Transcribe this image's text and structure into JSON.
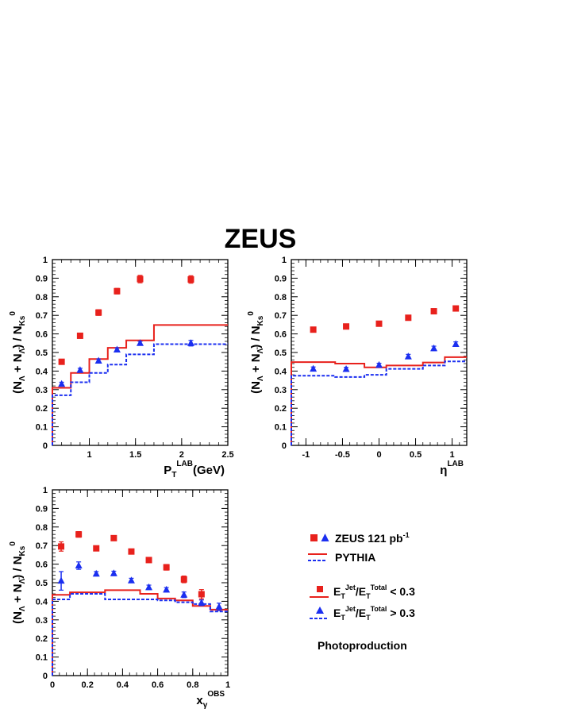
{
  "figure": {
    "title": "ZEUS",
    "y_axis_label": {
      "prefix": "(N",
      "sub1": "Λ",
      "mid": " + N",
      "sub2": "Λ̄",
      "suffix": ") / N",
      "sub3": "Ks",
      "sup3": "0"
    }
  },
  "legend": {
    "data_label": "ZEUS 121 pb",
    "data_label_sup": "-1",
    "mc_label": "PYTHIA",
    "low_label": "E",
    "low_sub": "T",
    "low_sup": "Jet",
    "low_mid": "/E",
    "low_sub2": "T",
    "low_sup2": "Total",
    "low_tail": " < 0.3",
    "high_tail": " > 0.3",
    "process": "Photoproduction"
  },
  "colors": {
    "low": "#e8211c",
    "high": "#1b2ff0"
  },
  "chart_data": [
    {
      "type": "scatter",
      "name": "pt",
      "xlabel": "P",
      "xlabel_sub": "T",
      "xlabel_sup": "LAB",
      "xlabel_tail": "(GeV)",
      "xlim": [
        0.6,
        2.5
      ],
      "ylim": [
        0,
        1
      ],
      "xticks": [
        1,
        1.5,
        2,
        2.5
      ],
      "xticklabels": [
        "1",
        "1.5",
        "2",
        "2.5"
      ],
      "yticks": [
        0,
        0.1,
        0.2,
        0.3,
        0.4,
        0.5,
        0.6,
        0.7,
        0.8,
        0.9,
        1
      ],
      "yticklabels": [
        "0",
        "0.1",
        "0.2",
        "0.3",
        "0.4",
        "0.5",
        "0.6",
        "0.7",
        "0.8",
        "0.9",
        "1"
      ],
      "data_low": {
        "x": [
          0.7,
          0.9,
          1.1,
          1.3,
          1.55,
          2.1
        ],
        "y": [
          0.45,
          0.59,
          0.715,
          0.83,
          0.895,
          0.893
        ],
        "err": [
          0.01,
          0.01,
          0.015,
          0.015,
          0.02,
          0.02
        ]
      },
      "data_high": {
        "x": [
          0.7,
          0.9,
          1.1,
          1.3,
          1.55,
          2.1
        ],
        "y": [
          0.33,
          0.405,
          0.455,
          0.515,
          0.55,
          0.55
        ],
        "err": [
          0.01,
          0.01,
          0.01,
          0.01,
          0.01,
          0.015
        ]
      },
      "mc_edges": [
        0.6,
        0.8,
        1.0,
        1.2,
        1.4,
        1.7,
        2.5
      ],
      "mc_low": [
        0.31,
        0.39,
        0.465,
        0.525,
        0.565,
        0.648
      ],
      "mc_high": [
        0.27,
        0.34,
        0.39,
        0.435,
        0.49,
        0.545
      ]
    },
    {
      "type": "scatter",
      "name": "eta",
      "xlabel": "η",
      "xlabel_sup": "LAB",
      "xlim": [
        -1.2,
        1.2
      ],
      "ylim": [
        0,
        1
      ],
      "xticks": [
        -1,
        -0.5,
        0,
        0.5,
        1
      ],
      "xticklabels": [
        "-1",
        "-0.5",
        "0",
        "0.5",
        "1"
      ],
      "yticks": [
        0,
        0.1,
        0.2,
        0.3,
        0.4,
        0.5,
        0.6,
        0.7,
        0.8,
        0.9,
        1
      ],
      "yticklabels": [
        "0",
        "0.1",
        "0.2",
        "0.3",
        "0.4",
        "0.5",
        "0.6",
        "0.7",
        "0.8",
        "0.9",
        "1"
      ],
      "data_low": {
        "x": [
          -0.9,
          -0.45,
          0,
          0.4,
          0.75,
          1.05
        ],
        "y": [
          0.623,
          0.64,
          0.655,
          0.687,
          0.722,
          0.737
        ],
        "err": [
          0.01,
          0.01,
          0.01,
          0.01,
          0.01,
          0.012
        ]
      },
      "data_high": {
        "x": [
          -0.9,
          -0.45,
          0,
          0.4,
          0.75,
          1.05
        ],
        "y": [
          0.412,
          0.41,
          0.432,
          0.478,
          0.522,
          0.545
        ],
        "err": [
          0.01,
          0.01,
          0.01,
          0.012,
          0.012,
          0.012
        ]
      },
      "mc_edges": [
        -1.2,
        -0.6,
        -0.2,
        0.1,
        0.6,
        0.9,
        1.2
      ],
      "mc_low": [
        0.448,
        0.44,
        0.42,
        0.43,
        0.446,
        0.475
      ],
      "mc_high": [
        0.375,
        0.368,
        0.38,
        0.412,
        0.43,
        0.452
      ]
    },
    {
      "type": "scatter",
      "name": "xgamma",
      "xlabel": "x",
      "xlabel_sub": "γ",
      "xlabel_sup": "OBS",
      "xlim": [
        0,
        1
      ],
      "ylim": [
        0,
        1
      ],
      "xticks": [
        0,
        0.2,
        0.4,
        0.6,
        0.8,
        1
      ],
      "xticklabels": [
        "0",
        "0.2",
        "0.4",
        "0.6",
        "0.8",
        "1"
      ],
      "yticks": [
        0,
        0.1,
        0.2,
        0.3,
        0.4,
        0.5,
        0.6,
        0.7,
        0.8,
        0.9,
        1
      ],
      "yticklabels": [
        "0",
        "0.1",
        "0.2",
        "0.3",
        "0.4",
        "0.5",
        "0.6",
        "0.7",
        "0.8",
        "0.9",
        "1"
      ],
      "data_low": {
        "x": [
          0.05,
          0.15,
          0.25,
          0.35,
          0.45,
          0.55,
          0.65,
          0.75,
          0.85
        ],
        "y": [
          0.695,
          0.76,
          0.685,
          0.74,
          0.668,
          0.622,
          0.583,
          0.518,
          0.438
        ],
        "err": [
          0.025,
          0.015,
          0.012,
          0.012,
          0.012,
          0.012,
          0.015,
          0.018,
          0.025
        ]
      },
      "data_high": {
        "x": [
          0.05,
          0.15,
          0.25,
          0.35,
          0.45,
          0.55,
          0.65,
          0.75,
          0.85,
          0.95
        ],
        "y": [
          0.51,
          0.592,
          0.548,
          0.55,
          0.512,
          0.475,
          0.462,
          0.435,
          0.392,
          0.37
        ],
        "err": [
          0.05,
          0.02,
          0.012,
          0.012,
          0.012,
          0.012,
          0.012,
          0.015,
          0.015,
          0.02
        ]
      },
      "mc_edges": [
        0,
        0.1,
        0.3,
        0.5,
        0.6,
        0.7,
        0.8,
        0.9,
        1.0
      ],
      "mc_low": [
        0.435,
        0.448,
        0.46,
        0.44,
        0.415,
        0.405,
        0.375,
        0.355
      ],
      "mc_high": [
        0.41,
        0.44,
        0.41,
        0.41,
        0.405,
        0.395,
        0.385,
        0.345
      ]
    }
  ]
}
